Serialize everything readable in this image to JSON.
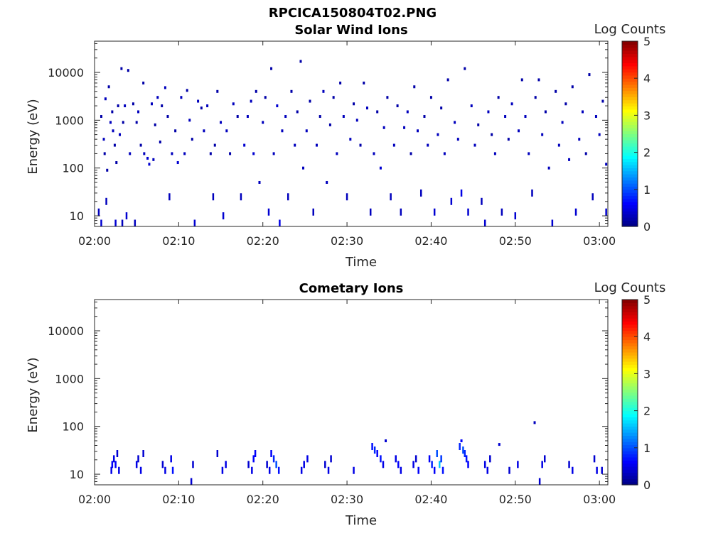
{
  "page_title": "RPCICA150804T02.PNG",
  "chart_data": [
    {
      "type": "heatmap",
      "title": "Solar Wind Ions",
      "xlabel": "Time",
      "ylabel": "Energy (eV)",
      "x_ticks": [
        "02:00",
        "02:10",
        "02:20",
        "02:30",
        "02:40",
        "02:50",
        "03:00"
      ],
      "x_range_minutes": [
        0,
        61
      ],
      "y_scale": "log",
      "y_ticks": [
        "10",
        "100",
        "1000",
        "10000"
      ],
      "y_range": [
        6,
        45000
      ],
      "colorbar": {
        "label": "Log Counts",
        "range": [
          0,
          5
        ],
        "ticks": [
          "0",
          "1",
          "2",
          "3",
          "4",
          "5"
        ],
        "colormap": "jet"
      },
      "grid": false,
      "points": [
        [
          0.5,
          12,
          0.3
        ],
        [
          0.8,
          1200,
          0.2
        ],
        [
          0.8,
          7,
          0.4
        ],
        [
          1.1,
          400,
          0.3
        ],
        [
          1.2,
          200,
          0.2
        ],
        [
          1.3,
          2800,
          0.3
        ],
        [
          1.4,
          20,
          0.3
        ],
        [
          1.5,
          90,
          0.2
        ],
        [
          1.7,
          5000,
          0.2
        ],
        [
          1.9,
          900,
          0.3
        ],
        [
          2.1,
          1500,
          0.2
        ],
        [
          2.2,
          600,
          0.3
        ],
        [
          2.4,
          300,
          0.2
        ],
        [
          2.5,
          7,
          0.4
        ],
        [
          2.6,
          130,
          0.2
        ],
        [
          2.8,
          2000,
          0.2
        ],
        [
          3.0,
          500,
          0.3
        ],
        [
          3.2,
          12000,
          0.2
        ],
        [
          3.3,
          7,
          0.3
        ],
        [
          3.4,
          900,
          0.2
        ],
        [
          3.6,
          2000,
          0.3
        ],
        [
          3.8,
          10,
          0.4
        ],
        [
          4.0,
          11000,
          0.2
        ],
        [
          4.2,
          200,
          0.3
        ],
        [
          4.6,
          2200,
          0.2
        ],
        [
          4.8,
          7,
          0.3
        ],
        [
          5.0,
          900,
          0.2
        ],
        [
          5.2,
          1500,
          0.3
        ],
        [
          5.5,
          300,
          0.2
        ],
        [
          5.8,
          6000,
          0.2
        ],
        [
          5.9,
          200,
          0.3
        ],
        [
          6.3,
          160,
          0.4
        ],
        [
          6.5,
          120,
          0.4
        ],
        [
          6.8,
          2200,
          0.3
        ],
        [
          7.0,
          150,
          0.3
        ],
        [
          7.2,
          800,
          0.2
        ],
        [
          7.5,
          3000,
          0.3
        ],
        [
          7.8,
          350,
          0.2
        ],
        [
          8.0,
          2000,
          0.2
        ],
        [
          8.4,
          4800,
          0.3
        ],
        [
          8.7,
          1200,
          0.2
        ],
        [
          8.9,
          25,
          0.3
        ],
        [
          9.2,
          200,
          0.3
        ],
        [
          9.6,
          600,
          0.2
        ],
        [
          9.9,
          130,
          0.4
        ],
        [
          10.3,
          3000,
          0.3
        ],
        [
          10.7,
          200,
          0.3
        ],
        [
          11.0,
          4200,
          0.2
        ],
        [
          11.3,
          1000,
          0.3
        ],
        [
          11.6,
          400,
          0.2
        ],
        [
          11.9,
          7,
          0.4
        ],
        [
          12.3,
          2500,
          0.3
        ],
        [
          12.7,
          1800,
          0.2
        ],
        [
          13.0,
          600,
          0.3
        ],
        [
          13.4,
          2000,
          0.3
        ],
        [
          13.8,
          200,
          0.2
        ],
        [
          14.1,
          25,
          0.3
        ],
        [
          14.3,
          300,
          0.2
        ],
        [
          14.6,
          4000,
          0.2
        ],
        [
          15.0,
          900,
          0.3
        ],
        [
          15.3,
          10,
          0.4
        ],
        [
          15.7,
          600,
          0.3
        ],
        [
          16.1,
          200,
          0.2
        ],
        [
          16.5,
          2200,
          0.3
        ],
        [
          17.0,
          1200,
          0.2
        ],
        [
          17.4,
          25,
          0.3
        ],
        [
          17.8,
          300,
          0.4
        ],
        [
          18.2,
          1200,
          0.3
        ],
        [
          18.6,
          2500,
          0.3
        ],
        [
          18.9,
          200,
          0.4
        ],
        [
          19.2,
          4000,
          0.2
        ],
        [
          19.6,
          50,
          0.3
        ],
        [
          20.0,
          900,
          0.3
        ],
        [
          20.3,
          3000,
          0.2
        ],
        [
          20.7,
          12,
          0.4
        ],
        [
          21.0,
          12000,
          0.2
        ],
        [
          21.3,
          200,
          0.3
        ],
        [
          21.7,
          2000,
          0.4
        ],
        [
          22.0,
          7,
          0.5
        ],
        [
          22.3,
          600,
          0.3
        ],
        [
          22.7,
          1200,
          0.3
        ],
        [
          23.0,
          25,
          0.3
        ],
        [
          23.4,
          4000,
          0.2
        ],
        [
          23.8,
          300,
          0.3
        ],
        [
          24.1,
          1500,
          0.2
        ],
        [
          24.5,
          17000,
          0.2
        ],
        [
          24.8,
          100,
          0.3
        ],
        [
          25.2,
          600,
          0.3
        ],
        [
          25.6,
          2500,
          0.2
        ],
        [
          26.0,
          12,
          0.3
        ],
        [
          26.4,
          300,
          0.3
        ],
        [
          26.8,
          1200,
          0.2
        ],
        [
          27.2,
          4000,
          0.3
        ],
        [
          27.6,
          50,
          0.3
        ],
        [
          28.0,
          800,
          0.2
        ],
        [
          28.4,
          3000,
          0.2
        ],
        [
          28.8,
          200,
          0.3
        ],
        [
          29.2,
          6000,
          0.2
        ],
        [
          29.6,
          1200,
          0.3
        ],
        [
          30.0,
          25,
          0.3
        ],
        [
          30.4,
          400,
          0.3
        ],
        [
          30.8,
          2200,
          0.2
        ],
        [
          31.2,
          1000,
          0.3
        ],
        [
          31.6,
          300,
          0.2
        ],
        [
          32.0,
          6000,
          0.2
        ],
        [
          32.4,
          1800,
          0.3
        ],
        [
          32.8,
          12,
          0.3
        ],
        [
          33.2,
          200,
          0.3
        ],
        [
          33.6,
          1500,
          0.2
        ],
        [
          34.0,
          100,
          0.4
        ],
        [
          34.4,
          700,
          0.3
        ],
        [
          34.8,
          3000,
          0.2
        ],
        [
          35.2,
          25,
          0.3
        ],
        [
          35.6,
          300,
          0.3
        ],
        [
          36.0,
          2000,
          0.2
        ],
        [
          36.4,
          12,
          0.3
        ],
        [
          36.8,
          700,
          0.3
        ],
        [
          37.2,
          1500,
          0.3
        ],
        [
          37.6,
          200,
          0.2
        ],
        [
          38.0,
          5000,
          0.2
        ],
        [
          38.4,
          600,
          0.3
        ],
        [
          38.8,
          30,
          0.3
        ],
        [
          39.2,
          1200,
          0.2
        ],
        [
          39.6,
          300,
          0.3
        ],
        [
          40.0,
          3000,
          0.2
        ],
        [
          40.4,
          12,
          0.4
        ],
        [
          40.8,
          500,
          0.3
        ],
        [
          41.2,
          1800,
          0.2
        ],
        [
          41.6,
          200,
          0.3
        ],
        [
          42.0,
          7000,
          0.2
        ],
        [
          42.4,
          20,
          0.4
        ],
        [
          42.8,
          900,
          0.3
        ],
        [
          43.2,
          400,
          0.3
        ],
        [
          43.6,
          30,
          0.5
        ],
        [
          44.0,
          12000,
          0.2
        ],
        [
          44.4,
          12,
          0.4
        ],
        [
          44.8,
          2000,
          0.3
        ],
        [
          45.2,
          300,
          0.3
        ],
        [
          45.6,
          800,
          0.2
        ],
        [
          46.0,
          20,
          0.3
        ],
        [
          46.4,
          7,
          0.4
        ],
        [
          46.8,
          1500,
          0.3
        ],
        [
          47.2,
          500,
          0.2
        ],
        [
          47.6,
          200,
          0.3
        ],
        [
          48.0,
          3000,
          0.2
        ],
        [
          48.4,
          12,
          0.3
        ],
        [
          48.8,
          1200,
          0.3
        ],
        [
          49.2,
          400,
          0.2
        ],
        [
          49.6,
          2200,
          0.3
        ],
        [
          50.0,
          10,
          0.4
        ],
        [
          50.4,
          600,
          0.3
        ],
        [
          50.8,
          7000,
          0.2
        ],
        [
          51.2,
          1200,
          0.3
        ],
        [
          51.6,
          200,
          0.3
        ],
        [
          52.0,
          30,
          0.3
        ],
        [
          52.4,
          3000,
          0.2
        ],
        [
          52.8,
          7000,
          0.2
        ],
        [
          53.2,
          500,
          0.3
        ],
        [
          53.6,
          1500,
          0.2
        ],
        [
          54.0,
          100,
          0.3
        ],
        [
          54.4,
          7,
          0.4
        ],
        [
          54.8,
          4000,
          0.2
        ],
        [
          55.2,
          300,
          0.3
        ],
        [
          55.6,
          900,
          0.3
        ],
        [
          56.0,
          2200,
          0.2
        ],
        [
          56.4,
          150,
          0.3
        ],
        [
          56.8,
          5000,
          0.2
        ],
        [
          57.2,
          12,
          0.4
        ],
        [
          57.6,
          400,
          0.3
        ],
        [
          58.0,
          1500,
          0.3
        ],
        [
          58.4,
          200,
          0.2
        ],
        [
          58.8,
          9000,
          0.2
        ],
        [
          59.2,
          25,
          0.3
        ],
        [
          59.6,
          1200,
          0.3
        ],
        [
          60.0,
          500,
          0.3
        ],
        [
          60.4,
          2500,
          0.2
        ],
        [
          60.8,
          12,
          0.4
        ],
        [
          60.8,
          120,
          0.3
        ]
      ]
    },
    {
      "type": "heatmap",
      "title": "Cometary Ions",
      "xlabel": "Time",
      "ylabel": "Energy (eV)",
      "x_ticks": [
        "02:00",
        "02:10",
        "02:20",
        "02:30",
        "02:40",
        "02:50",
        "03:00"
      ],
      "x_range_minutes": [
        0,
        61
      ],
      "y_scale": "log",
      "y_ticks": [
        "10",
        "100",
        "1000",
        "10000"
      ],
      "y_range": [
        6,
        45000
      ],
      "colorbar": {
        "label": "Log Counts",
        "range": [
          0,
          5
        ],
        "ticks": [
          "0",
          "1",
          "2",
          "3",
          "4",
          "5"
        ],
        "colormap": "jet"
      },
      "grid": false,
      "points": [
        [
          2.0,
          12,
          0.5
        ],
        [
          2.1,
          16,
          0.6
        ],
        [
          2.3,
          21,
          0.5
        ],
        [
          2.5,
          16,
          0.6
        ],
        [
          2.7,
          27,
          0.4
        ],
        [
          2.9,
          12,
          0.5
        ],
        [
          5.0,
          16,
          0.5
        ],
        [
          5.2,
          21,
          0.4
        ],
        [
          5.5,
          12,
          0.5
        ],
        [
          5.8,
          27,
          0.4
        ],
        [
          8.1,
          16,
          0.4
        ],
        [
          8.4,
          12,
          0.5
        ],
        [
          9.1,
          21,
          0.5
        ],
        [
          9.3,
          12,
          0.7
        ],
        [
          11.5,
          7,
          0.4
        ],
        [
          11.7,
          16,
          0.4
        ],
        [
          14.6,
          27,
          0.4
        ],
        [
          15.2,
          12,
          0.5
        ],
        [
          15.6,
          16,
          0.5
        ],
        [
          18.3,
          16,
          0.4
        ],
        [
          18.7,
          12,
          0.5
        ],
        [
          18.9,
          21,
          0.6
        ],
        [
          19.1,
          27,
          0.6
        ],
        [
          20.5,
          16,
          0.4
        ],
        [
          20.8,
          12,
          0.5
        ],
        [
          21.0,
          27,
          0.6
        ],
        [
          21.3,
          21,
          0.8
        ],
        [
          21.6,
          16,
          1.0
        ],
        [
          21.9,
          12,
          0.7
        ],
        [
          24.6,
          12,
          0.5
        ],
        [
          24.9,
          16,
          0.5
        ],
        [
          25.3,
          21,
          0.5
        ],
        [
          27.4,
          16,
          0.4
        ],
        [
          27.8,
          12,
          0.5
        ],
        [
          28.1,
          21,
          0.4
        ],
        [
          30.8,
          12,
          0.5
        ],
        [
          33.0,
          38,
          0.7
        ],
        [
          33.3,
          32,
          0.8
        ],
        [
          33.6,
          27,
          0.6
        ],
        [
          34.0,
          21,
          0.7
        ],
        [
          34.3,
          16,
          0.5
        ],
        [
          34.6,
          50,
          0.4
        ],
        [
          35.8,
          21,
          0.5
        ],
        [
          36.1,
          16,
          0.6
        ],
        [
          36.4,
          12,
          0.5
        ],
        [
          37.9,
          16,
          0.5
        ],
        [
          38.2,
          21,
          0.4
        ],
        [
          38.5,
          12,
          0.6
        ],
        [
          39.8,
          21,
          0.6
        ],
        [
          40.1,
          16,
          0.8
        ],
        [
          40.4,
          12,
          0.6
        ],
        [
          40.7,
          27,
          1.0
        ],
        [
          41.0,
          16,
          1.6
        ],
        [
          41.2,
          21,
          0.9
        ],
        [
          41.4,
          12,
          0.7
        ],
        [
          43.4,
          38,
          0.8
        ],
        [
          43.6,
          50,
          0.6
        ],
        [
          43.8,
          32,
          1.0
        ],
        [
          44.0,
          27,
          0.8
        ],
        [
          44.2,
          21,
          0.7
        ],
        [
          44.4,
          16,
          0.6
        ],
        [
          46.4,
          16,
          0.5
        ],
        [
          46.7,
          12,
          0.5
        ],
        [
          47.0,
          21,
          0.4
        ],
        [
          48.1,
          42,
          0.4
        ],
        [
          49.3,
          12,
          0.4
        ],
        [
          50.3,
          16,
          0.5
        ],
        [
          52.3,
          120,
          0.3
        ],
        [
          52.9,
          7,
          0.4
        ],
        [
          53.2,
          16,
          0.5
        ],
        [
          53.5,
          21,
          0.4
        ],
        [
          56.4,
          16,
          0.4
        ],
        [
          56.8,
          12,
          0.5
        ],
        [
          59.4,
          21,
          0.4
        ],
        [
          59.7,
          12,
          0.5
        ],
        [
          60.3,
          12,
          0.4
        ]
      ]
    }
  ]
}
